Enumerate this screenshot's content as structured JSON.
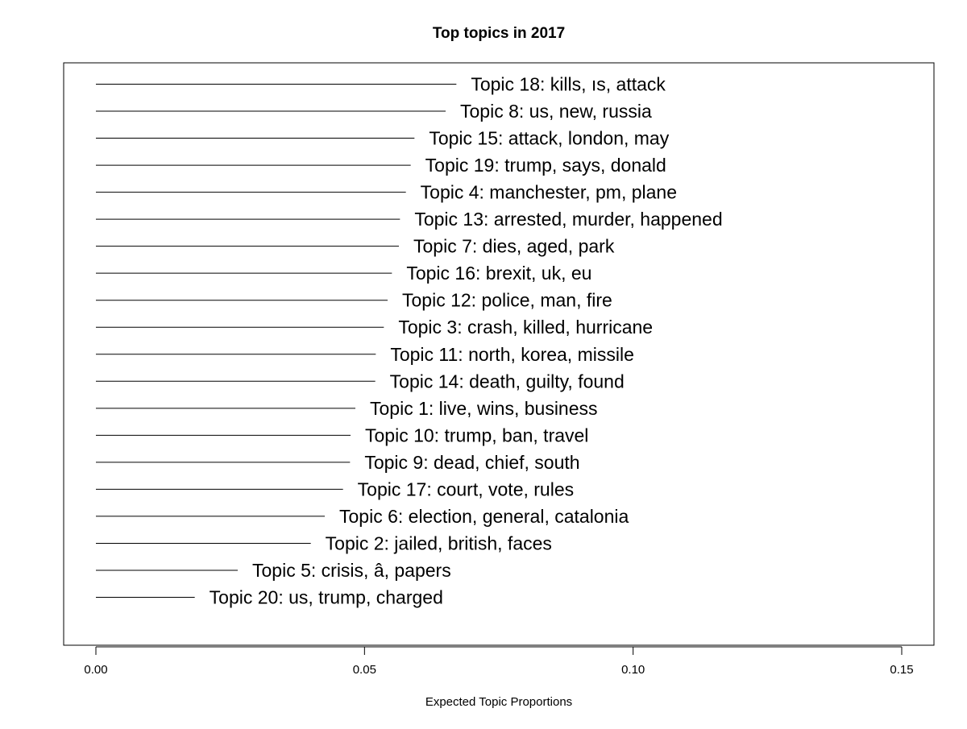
{
  "chart_data": {
    "type": "bar",
    "orientation": "horizontal",
    "title": "Top topics in 2017",
    "xlabel": "Expected Topic Proportions",
    "ylabel": "",
    "xlim": [
      -0.006,
      0.156
    ],
    "xticks": [
      0.0,
      0.05,
      0.1,
      0.15
    ],
    "xtick_labels": [
      "0.00",
      "0.05",
      "0.10",
      "0.15"
    ],
    "grid": false,
    "legend": "none",
    "categories": [
      "Topic 18: kills, ıs, attack",
      "Topic 8: us, new, russia",
      "Topic 15: attack, london, may",
      "Topic 19: trump, says, donald",
      "Topic 4: manchester, pm, plane",
      "Topic 13: arrested, murder, happened",
      "Topic 7: dies, aged, park",
      "Topic 16: brexit, uk, eu",
      "Topic 12: police, man, fire",
      "Topic 3: crash, killed, hurricane",
      "Topic 11: north, korea, missile",
      "Topic 14: death, guilty, found",
      "Topic 1: live, wins, business",
      "Topic 10: trump, ban, travel",
      "Topic 9: dead, chief, south",
      "Topic 17: court, vote, rules",
      "Topic 6: election, general, catalonia",
      "Topic 2: jailed, british, faces",
      "Topic 5: crisis, â, papers",
      "Topic 20: us, trump, charged"
    ],
    "values": [
      0.0671,
      0.0651,
      0.0593,
      0.0586,
      0.0577,
      0.0566,
      0.0564,
      0.0551,
      0.0543,
      0.0536,
      0.0521,
      0.052,
      0.0483,
      0.0474,
      0.0473,
      0.046,
      0.0426,
      0.04,
      0.0264,
      0.0184
    ]
  }
}
